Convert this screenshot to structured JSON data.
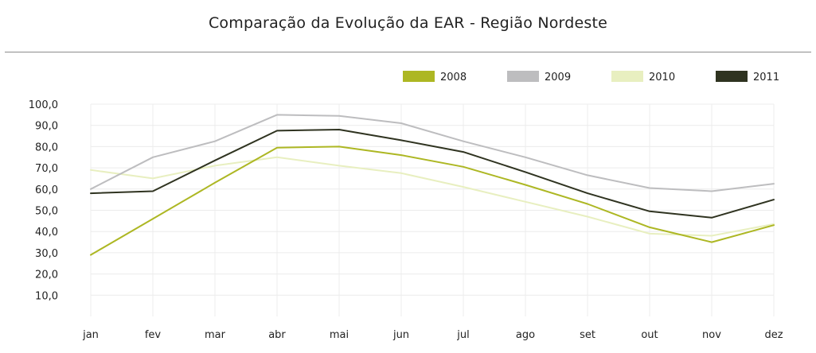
{
  "chart_data": {
    "type": "line",
    "title": "Comparação da Evolução da EAR - Região Nordeste",
    "xlabel": "",
    "ylabel": "",
    "categories": [
      "jan",
      "fev",
      "mar",
      "abr",
      "mai",
      "jun",
      "jul",
      "ago",
      "set",
      "out",
      "nov",
      "dez"
    ],
    "y_ticks": [
      "10,0",
      "20,0",
      "30,0",
      "40,0",
      "50,0",
      "60,0",
      "70,0",
      "80,0",
      "90,0",
      "100,0"
    ],
    "ylim": [
      0,
      100
    ],
    "grid": true,
    "legend_position": "top-right",
    "series": [
      {
        "name": "2008",
        "color": "#adb723",
        "values": [
          29.0,
          46.0,
          63.0,
          79.5,
          80.0,
          76.0,
          70.5,
          62.0,
          53.0,
          42.0,
          35.0,
          43.0
        ]
      },
      {
        "name": "2009",
        "color": "#bdbdbf",
        "values": [
          60.0,
          75.0,
          82.5,
          95.0,
          94.5,
          91.0,
          82.5,
          75.0,
          66.5,
          60.5,
          59.0,
          62.5
        ]
      },
      {
        "name": "2010",
        "color": "#e8efc0",
        "values": [
          69.0,
          65.0,
          71.0,
          75.0,
          71.0,
          67.5,
          61.0,
          54.0,
          47.0,
          39.0,
          38.0,
          43.5
        ]
      },
      {
        "name": "2011",
        "color": "#2f3320",
        "values": [
          58.0,
          59.0,
          73.5,
          87.5,
          88.0,
          83.0,
          77.5,
          68.0,
          58.0,
          49.5,
          46.5,
          55.0
        ]
      }
    ]
  }
}
